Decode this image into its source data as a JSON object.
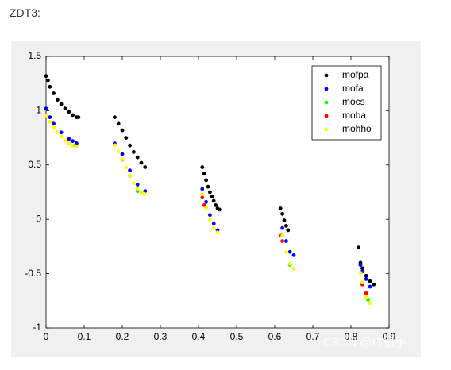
{
  "heading": "ZDT3:",
  "watermark": "CSDN @IT猿手",
  "chart_data": {
    "type": "scatter",
    "xlim": [
      0,
      0.9
    ],
    "ylim": [
      -1,
      1.5
    ],
    "xticks": [
      0,
      0.1,
      0.2,
      0.3,
      0.4,
      0.5,
      0.6,
      0.7,
      0.8,
      0.9
    ],
    "yticks": [
      -1,
      -0.5,
      0,
      0.5,
      1,
      1.5
    ],
    "legend": "northeast",
    "series": [
      {
        "name": "mofpa",
        "color": "#000000",
        "x": [
          0,
          0.005,
          0.01,
          0.02,
          0.03,
          0.04,
          0.05,
          0.06,
          0.07,
          0.08,
          0.085,
          0.18,
          0.19,
          0.2,
          0.21,
          0.22,
          0.23,
          0.24,
          0.25,
          0.26,
          0.41,
          0.415,
          0.42,
          0.425,
          0.43,
          0.435,
          0.44,
          0.445,
          0.45,
          0.455,
          0.615,
          0.62,
          0.625,
          0.63,
          0.635,
          0.82,
          0.825,
          0.83,
          0.84,
          0.85,
          0.86
        ],
        "y": [
          1.32,
          1.28,
          1.22,
          1.16,
          1.1,
          1.06,
          1.02,
          0.99,
          0.96,
          0.94,
          0.94,
          0.94,
          0.88,
          0.82,
          0.75,
          0.68,
          0.62,
          0.57,
          0.52,
          0.48,
          0.48,
          0.42,
          0.36,
          0.3,
          0.25,
          0.21,
          0.17,
          0.13,
          0.1,
          0.09,
          0.1,
          0.05,
          -0.01,
          -0.06,
          -0.1,
          -0.26,
          -0.4,
          -0.45,
          -0.52,
          -0.57,
          -0.6
        ]
      },
      {
        "name": "mofa",
        "color": "#0000ff",
        "x": [
          0,
          0.01,
          0.02,
          0.04,
          0.06,
          0.07,
          0.08,
          0.18,
          0.2,
          0.22,
          0.24,
          0.26,
          0.41,
          0.42,
          0.43,
          0.44,
          0.45,
          0.62,
          0.63,
          0.64,
          0.65,
          0.825,
          0.83,
          0.84,
          0.85
        ],
        "y": [
          1.02,
          0.94,
          0.88,
          0.8,
          0.74,
          0.72,
          0.7,
          0.7,
          0.6,
          0.45,
          0.32,
          0.26,
          0.28,
          0.16,
          0.04,
          -0.04,
          -0.1,
          -0.08,
          -0.2,
          -0.3,
          -0.33,
          -0.42,
          -0.48,
          -0.55,
          -0.62
        ]
      },
      {
        "name": "mocs",
        "color": "#00ff00",
        "x": [
          0.075,
          0.24,
          0.42,
          0.64,
          0.845
        ],
        "y": [
          0.68,
          0.26,
          0.11,
          -0.42,
          -0.74
        ]
      },
      {
        "name": "moba",
        "color": "#ff0000",
        "x": [
          0.2,
          0.22,
          0.41,
          0.415,
          0.617,
          0.62,
          0.83,
          0.84
        ],
        "y": [
          0.55,
          0.4,
          0.2,
          0.13,
          -0.15,
          -0.2,
          -0.6,
          -0.68
        ]
      },
      {
        "name": "mohho",
        "color": "#ffff00",
        "x": [
          0.002,
          0.01,
          0.02,
          0.03,
          0.04,
          0.05,
          0.06,
          0.07,
          0.08,
          0.18,
          0.19,
          0.2,
          0.21,
          0.22,
          0.23,
          0.24,
          0.25,
          0.258,
          0.41,
          0.42,
          0.43,
          0.44,
          0.45,
          0.62,
          0.63,
          0.64,
          0.65,
          0.825,
          0.83,
          0.84,
          0.85
        ],
        "y": [
          0.955,
          0.897,
          0.847,
          0.803,
          0.762,
          0.726,
          0.698,
          0.679,
          0.67,
          0.682,
          0.623,
          0.553,
          0.477,
          0.402,
          0.334,
          0.282,
          0.25,
          0.234,
          0.233,
          0.105,
          -0.004,
          -0.082,
          -0.121,
          -0.152,
          -0.303,
          -0.409,
          -0.456,
          -0.492,
          -0.582,
          -0.715,
          -0.772
        ]
      }
    ]
  }
}
